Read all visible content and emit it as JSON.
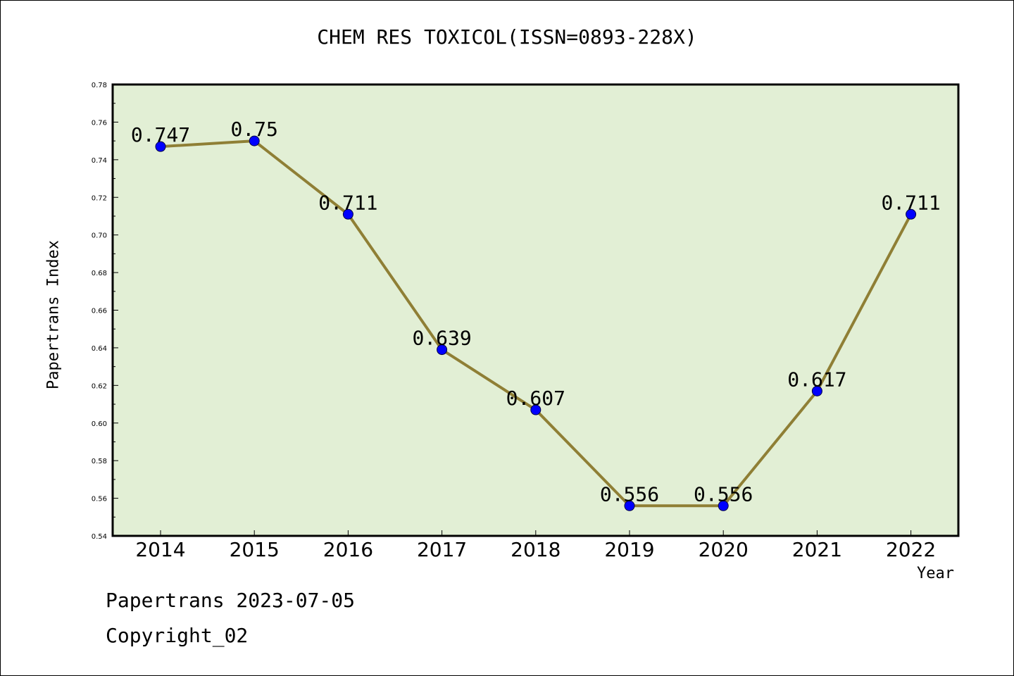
{
  "chart_data": {
    "type": "line",
    "title": "CHEM RES TOXICOL(ISSN=0893-228X)",
    "xlabel": "Year",
    "ylabel": "Papertrans Index",
    "categories": [
      "2014",
      "2015",
      "2016",
      "2017",
      "2018",
      "2019",
      "2020",
      "2021",
      "2022"
    ],
    "values": [
      0.747,
      0.75,
      0.711,
      0.639,
      0.607,
      0.556,
      0.556,
      0.617,
      0.711
    ],
    "data_labels": [
      "0.747",
      "0.75",
      "0.711",
      "0.639",
      "0.607",
      "0.556",
      "0.556",
      "0.617",
      "0.711"
    ],
    "ylim": [
      0.54,
      0.78
    ],
    "yticks": [
      "0.54",
      "0.56",
      "0.58",
      "0.60",
      "0.62",
      "0.64",
      "0.66",
      "0.68",
      "0.70",
      "0.72",
      "0.74",
      "0.76",
      "0.78"
    ],
    "grid": false,
    "colors": {
      "plot_background": "#e2efd5",
      "line": "#8f7f35",
      "marker": "#0000ff"
    }
  },
  "footer": {
    "line1": "Papertrans 2023-07-05",
    "line2": "Copyright_02"
  }
}
